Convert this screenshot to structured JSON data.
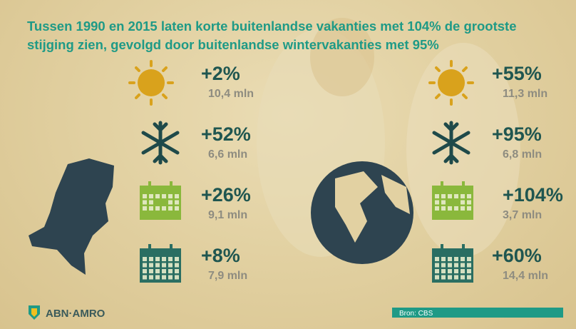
{
  "title_lines": [
    "Tussen 1990 en 2015 laten korte buitenlandse vakanties met 104% de grootste",
    "stijging zien, gevolgd door buitenlandse wintervakanties met 95%"
  ],
  "domestic": [
    {
      "change": "+2%",
      "count": "10,4 mln"
    },
    {
      "change": "+52%",
      "count": "6,6 mln"
    },
    {
      "change": "+26%",
      "count": "9,1 mln"
    },
    {
      "change": "+8%",
      "count": "7,9 mln"
    }
  ],
  "abroad": [
    {
      "change": "+55%",
      "count": "11,3 mln"
    },
    {
      "change": "+95%",
      "count": "6,8 mln"
    },
    {
      "change": "+104%",
      "count": "3,7 mln"
    },
    {
      "change": "+60%",
      "count": "14,4 mln"
    }
  ],
  "logo": "ABN·AMRO",
  "source": "Bron: CBS"
}
